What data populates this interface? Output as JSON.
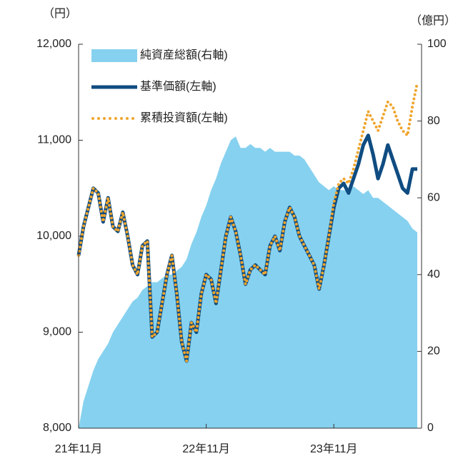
{
  "chart_data": {
    "type": "line",
    "y_label": "（円）",
    "y2_label": "（億円）",
    "categories": [
      "21年11月",
      null,
      null,
      null,
      null,
      null,
      null,
      null,
      null,
      null,
      null,
      null,
      null,
      null,
      null,
      null,
      null,
      null,
      null,
      null,
      null,
      null,
      null,
      null,
      null,
      null,
      "22年11月",
      null,
      null,
      null,
      null,
      null,
      null,
      null,
      null,
      null,
      null,
      null,
      null,
      null,
      null,
      null,
      null,
      null,
      null,
      null,
      null,
      null,
      null,
      null,
      null,
      null,
      "23年11月",
      null,
      null,
      null,
      null,
      null,
      null,
      null,
      null,
      null,
      null,
      null,
      null,
      null,
      null,
      null,
      null,
      null
    ],
    "ylim": [
      8000,
      12000
    ],
    "yticks": [
      {
        "value": 8000,
        "label": "8,000"
      },
      {
        "value": 9000,
        "label": "9,000"
      },
      {
        "value": 10000,
        "label": "10,000"
      },
      {
        "value": 11000,
        "label": "11,000"
      },
      {
        "value": 12000,
        "label": "12,000"
      }
    ],
    "y2lim": [
      0,
      100
    ],
    "y2ticks": [
      0,
      20,
      40,
      60,
      80,
      100
    ],
    "series": [
      {
        "name": "純資産総額(右軸)",
        "color": "#86d1ef",
        "style": "area",
        "axis": "y2",
        "values": [
          0,
          7,
          11,
          15,
          18,
          20,
          22,
          25,
          27,
          29,
          31,
          33,
          34,
          36,
          37,
          38,
          38,
          39,
          40,
          40,
          41,
          42,
          44,
          48,
          51,
          55,
          58,
          62,
          65,
          69,
          72,
          75,
          76,
          73,
          73,
          74,
          73,
          73,
          72,
          73,
          72,
          72,
          72,
          72,
          71,
          71,
          70,
          68,
          66,
          64,
          63,
          62,
          63,
          62,
          62,
          62,
          63,
          62,
          61,
          62,
          60,
          60,
          59,
          58,
          57,
          56,
          55,
          54,
          52,
          51
        ]
      },
      {
        "name": "基準価額(左軸)",
        "color": "#0f4c81",
        "style": "solid",
        "values": [
          9800,
          10100,
          10300,
          10500,
          10450,
          10150,
          10400,
          10100,
          10050,
          10250,
          10000,
          9700,
          9600,
          9900,
          9950,
          8950,
          9000,
          9300,
          9600,
          9800,
          9400,
          8900,
          8700,
          9100,
          9000,
          9400,
          9600,
          9550,
          9300,
          9650,
          10000,
          10200,
          10050,
          9800,
          9500,
          9650,
          9700,
          9650,
          9600,
          9900,
          10000,
          9850,
          10150,
          10300,
          10200,
          10000,
          9900,
          9800,
          9700,
          9450,
          9700,
          10000,
          10300,
          10500,
          10550,
          10450,
          10600,
          10750,
          10950,
          11050,
          10850,
          10600,
          10750,
          10950,
          10800,
          10650,
          10500,
          10450,
          10700,
          10700
        ]
      },
      {
        "name": "累積投資額(左軸)",
        "color": "#f0a52e",
        "style": "dotted",
        "values": [
          9800,
          10100,
          10300,
          10500,
          10450,
          10150,
          10400,
          10100,
          10050,
          10250,
          10000,
          9700,
          9600,
          9900,
          9950,
          8950,
          9000,
          9300,
          9600,
          9800,
          9400,
          8900,
          8700,
          9100,
          9000,
          9400,
          9600,
          9550,
          9300,
          9650,
          10000,
          10200,
          10050,
          9800,
          9500,
          9650,
          9700,
          9650,
          9600,
          9900,
          10000,
          9850,
          10150,
          10300,
          10200,
          10000,
          9900,
          9800,
          9700,
          9450,
          9700,
          10000,
          10350,
          10550,
          10600,
          10550,
          10700,
          10900,
          11100,
          11300,
          11200,
          11100,
          11250,
          11400,
          11350,
          11200,
          11100,
          11050,
          11350,
          11600
        ]
      }
    ]
  }
}
